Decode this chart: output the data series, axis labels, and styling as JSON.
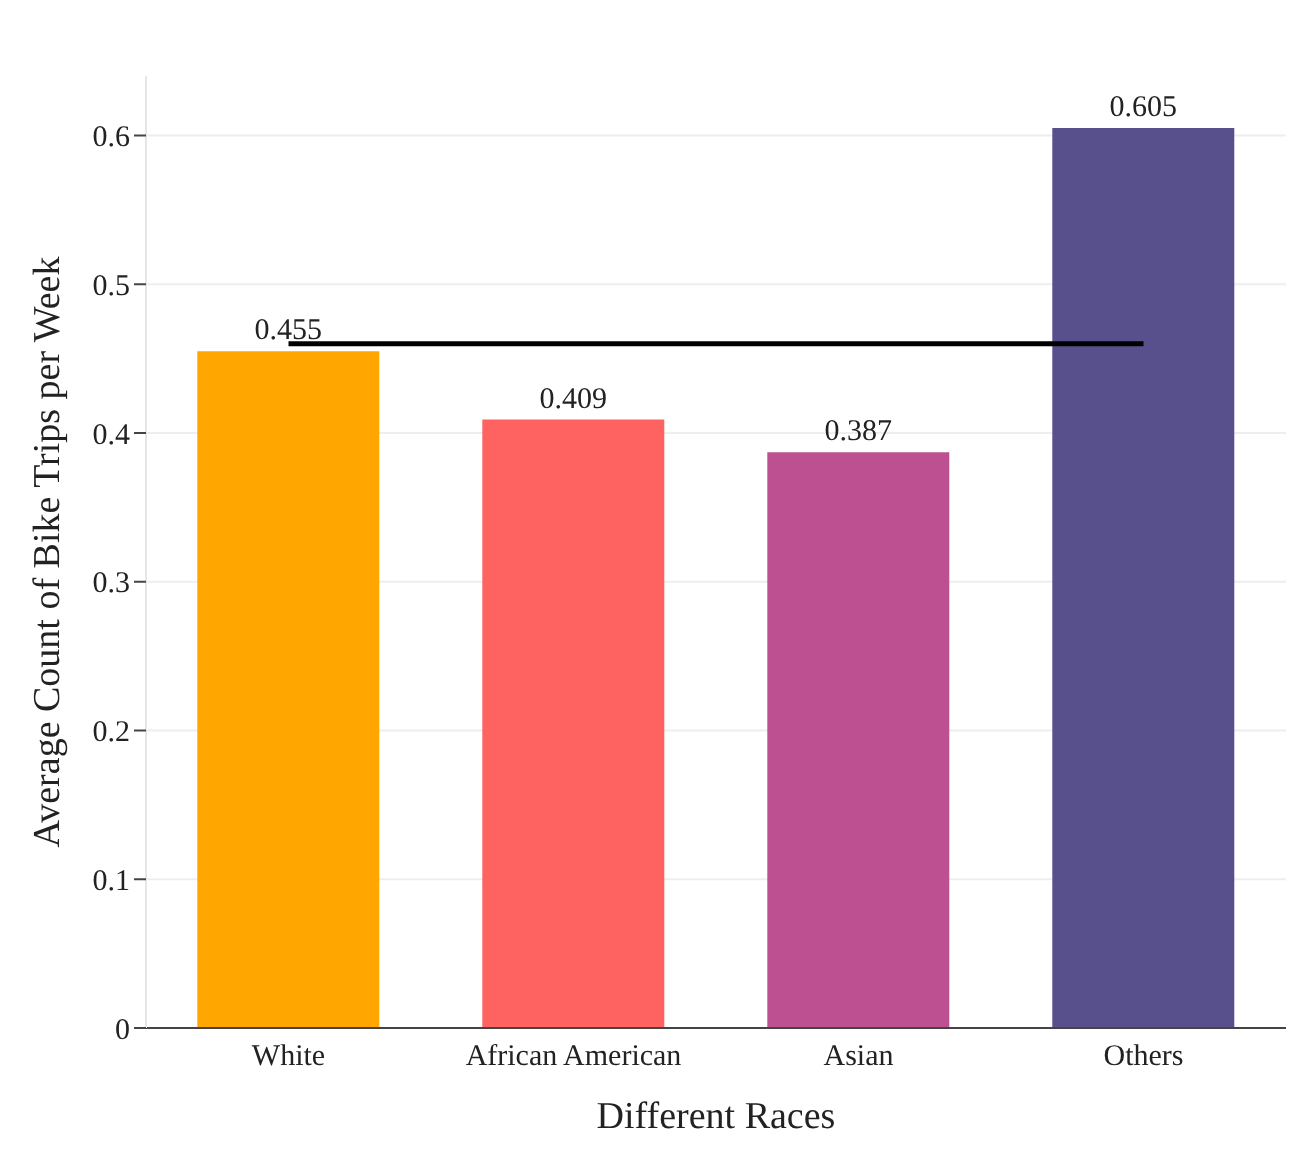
{
  "chart_data": {
    "type": "bar",
    "xlabel": "Different Races",
    "ylabel": "Average Count of Bike Trips per Week",
    "categories": [
      "White",
      "African American",
      "Asian",
      "Others"
    ],
    "series": [
      {
        "values": [
          0.455,
          0.409,
          0.387,
          0.605
        ],
        "colors": [
          "#ffa600",
          "#ff6361",
          "#bc5090",
          "#58508d"
        ],
        "value_labels": [
          "0.455",
          "0.409",
          "0.387",
          "0.605"
        ]
      },
      {
        "type": "line",
        "color": "#000000",
        "values": [
          0.46,
          0.46,
          0.46,
          0.46
        ],
        "marker": "none",
        "line_style": "solid"
      }
    ],
    "ylim": [
      0,
      0.64
    ],
    "yticks": [
      0,
      0.1,
      0.2,
      0.3,
      0.4,
      0.5,
      0.6
    ],
    "grid": "y",
    "legend": false
  }
}
